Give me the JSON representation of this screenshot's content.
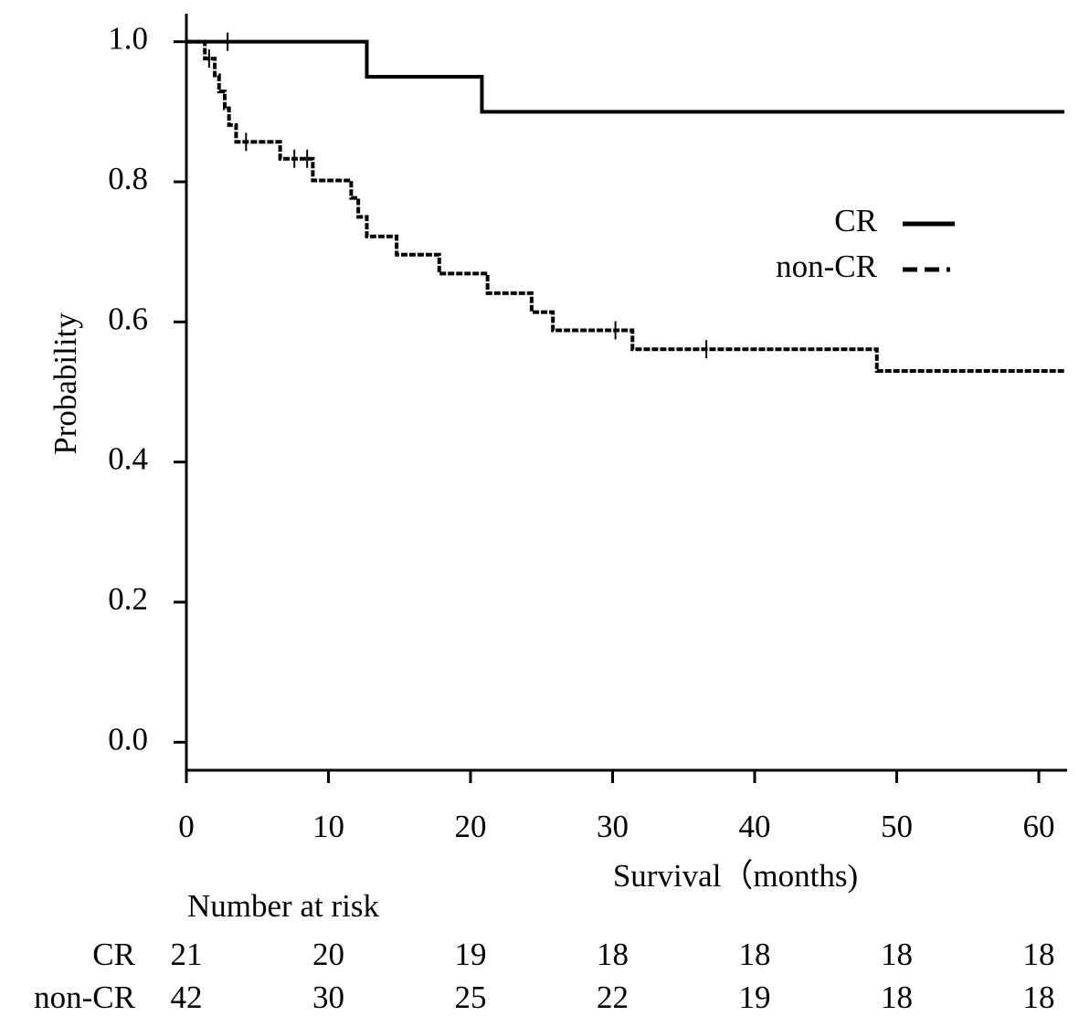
{
  "chart_data": {
    "type": "step-line",
    "y_label": "Probability",
    "x_label": "Survival（months)",
    "xlim": [
      0,
      62
    ],
    "ylim": [
      -0.04,
      1.04
    ],
    "xticks": [
      0,
      10,
      20,
      30,
      40,
      50,
      60
    ],
    "yticks": [
      {
        "value": 0,
        "label": "0.0"
      },
      0.2,
      0.4,
      0.6,
      0.8,
      {
        "value": 1,
        "label": "1.0"
      }
    ],
    "series": [
      {
        "name": "CR",
        "color": "#000000",
        "line_style": "solid",
        "x": [
          0,
          12.7,
          12.7,
          20.8,
          20.8,
          61.8
        ],
        "values": [
          1,
          1,
          0.95,
          0.95,
          0.9,
          0.9
        ],
        "censor_x": [
          2.9
        ],
        "censor_y": [
          1
        ]
      },
      {
        "name": "non-CR",
        "color": "#000000",
        "line_style": "dashed",
        "x": [
          0,
          1.3,
          1.3,
          2.0,
          2.0,
          2.3,
          2.3,
          2.7,
          2.7,
          3.0,
          3.0,
          3.5,
          3.5,
          6.6,
          6.6,
          8.9,
          8.9,
          11.6,
          11.6,
          12.1,
          12.1,
          12.7,
          12.7,
          14.8,
          14.8,
          17.8,
          17.8,
          21.2,
          21.2,
          24.3,
          24.3,
          25.8,
          25.8,
          31.4,
          31.4,
          48.6,
          48.6,
          61.8
        ],
        "values": [
          1,
          1,
          0.976,
          0.976,
          0.952,
          0.952,
          0.929,
          0.929,
          0.905,
          0.905,
          0.881,
          0.881,
          0.857,
          0.857,
          0.833,
          0.833,
          0.802,
          0.802,
          0.777,
          0.777,
          0.75,
          0.75,
          0.722,
          0.722,
          0.696,
          0.696,
          0.669,
          0.669,
          0.641,
          0.641,
          0.614,
          0.614,
          0.588,
          0.588,
          0.561,
          0.561,
          0.53,
          0.53
        ],
        "censor_x": [
          1.6,
          4.2,
          7.6,
          8.5,
          30.2,
          36.6
        ],
        "censor_y": [
          0.976,
          0.857,
          0.833,
          0.833,
          0.588,
          0.561
        ]
      }
    ],
    "risk_table": {
      "title": "Number at risk",
      "rows": [
        {
          "name": "CR",
          "values": [
            21,
            20,
            19,
            18,
            18,
            18,
            18
          ]
        },
        {
          "name": "non-CR",
          "values": [
            42,
            30,
            25,
            22,
            19,
            18,
            18
          ]
        }
      ]
    }
  }
}
